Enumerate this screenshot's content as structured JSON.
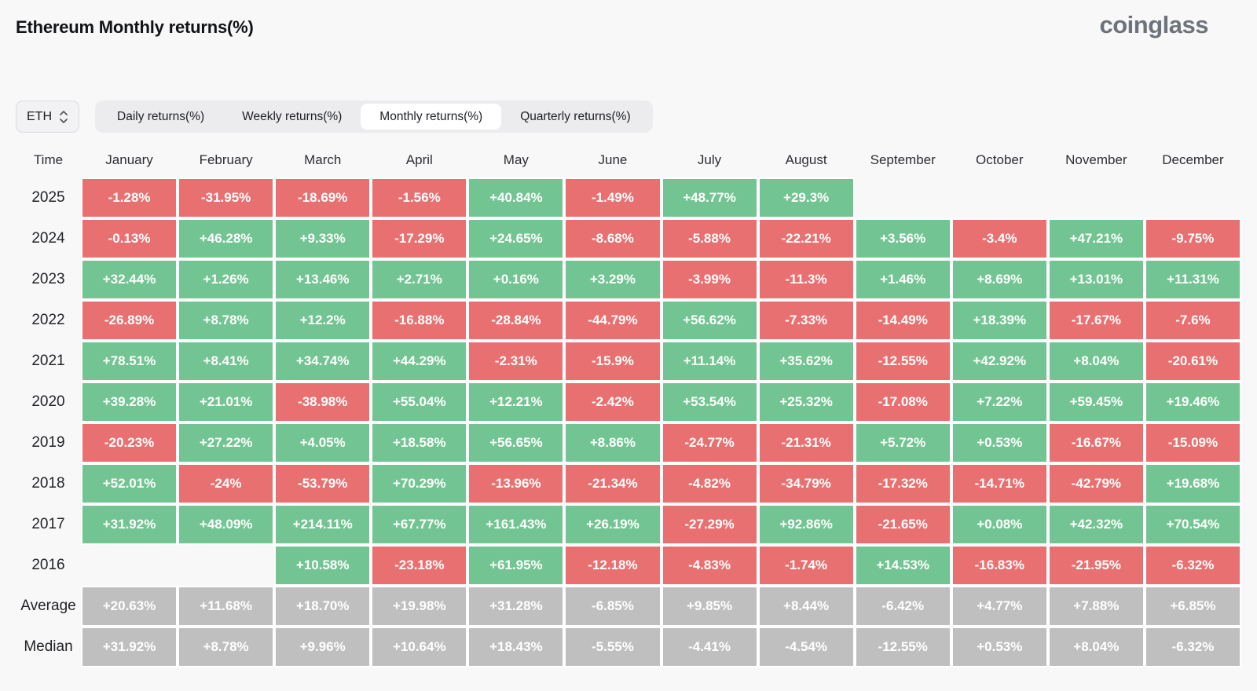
{
  "title": "Ethereum Monthly returns(%)",
  "logo": {
    "text": "coinglass"
  },
  "controls": {
    "symbol_select": {
      "value": "ETH"
    },
    "tabs": [
      {
        "label": "Daily returns(%)",
        "active": false
      },
      {
        "label": "Weekly returns(%)",
        "active": false
      },
      {
        "label": "Monthly returns(%)",
        "active": true
      },
      {
        "label": "Quarterly returns(%)",
        "active": false
      }
    ]
  },
  "colors": {
    "positive": "#72c592",
    "negative": "#e97070",
    "neutral": "#bfbfbf",
    "background": "#f8f8f9"
  },
  "chart_data": {
    "type": "heatmap",
    "title": "Ethereum Monthly returns(%)",
    "columns": [
      "Time",
      "January",
      "February",
      "March",
      "April",
      "May",
      "June",
      "July",
      "August",
      "September",
      "October",
      "November",
      "December"
    ],
    "rows": [
      {
        "label": "2025",
        "values": [
          "-1.28%",
          "-31.95%",
          "-18.69%",
          "-1.56%",
          "+40.84%",
          "-1.49%",
          "+48.77%",
          "+29.3%",
          null,
          null,
          null,
          null
        ]
      },
      {
        "label": "2024",
        "values": [
          "-0.13%",
          "+46.28%",
          "+9.33%",
          "-17.29%",
          "+24.65%",
          "-8.68%",
          "-5.88%",
          "-22.21%",
          "+3.56%",
          "-3.4%",
          "+47.21%",
          "-9.75%"
        ]
      },
      {
        "label": "2023",
        "values": [
          "+32.44%",
          "+1.26%",
          "+13.46%",
          "+2.71%",
          "+0.16%",
          "+3.29%",
          "-3.99%",
          "-11.3%",
          "+1.46%",
          "+8.69%",
          "+13.01%",
          "+11.31%"
        ]
      },
      {
        "label": "2022",
        "values": [
          "-26.89%",
          "+8.78%",
          "+12.2%",
          "-16.88%",
          "-28.84%",
          "-44.79%",
          "+56.62%",
          "-7.33%",
          "-14.49%",
          "+18.39%",
          "-17.67%",
          "-7.6%"
        ]
      },
      {
        "label": "2021",
        "values": [
          "+78.51%",
          "+8.41%",
          "+34.74%",
          "+44.29%",
          "-2.31%",
          "-15.9%",
          "+11.14%",
          "+35.62%",
          "-12.55%",
          "+42.92%",
          "+8.04%",
          "-20.61%"
        ]
      },
      {
        "label": "2020",
        "values": [
          "+39.28%",
          "+21.01%",
          "-38.98%",
          "+55.04%",
          "+12.21%",
          "-2.42%",
          "+53.54%",
          "+25.32%",
          "-17.08%",
          "+7.22%",
          "+59.45%",
          "+19.46%"
        ]
      },
      {
        "label": "2019",
        "values": [
          "-20.23%",
          "+27.22%",
          "+4.05%",
          "+18.58%",
          "+56.65%",
          "+8.86%",
          "-24.77%",
          "-21.31%",
          "+5.72%",
          "+0.53%",
          "-16.67%",
          "-15.09%"
        ]
      },
      {
        "label": "2018",
        "values": [
          "+52.01%",
          "-24%",
          "-53.79%",
          "+70.29%",
          "-13.96%",
          "-21.34%",
          "-4.82%",
          "-34.79%",
          "-17.32%",
          "-14.71%",
          "-42.79%",
          "+19.68%"
        ]
      },
      {
        "label": "2017",
        "values": [
          "+31.92%",
          "+48.09%",
          "+214.11%",
          "+67.77%",
          "+161.43%",
          "+26.19%",
          "-27.29%",
          "+92.86%",
          "-21.65%",
          "+0.08%",
          "+42.32%",
          "+70.54%"
        ]
      },
      {
        "label": "2016",
        "values": [
          null,
          null,
          "+10.58%",
          "-23.18%",
          "+61.95%",
          "-12.18%",
          "-4.83%",
          "-1.74%",
          "+14.53%",
          "-16.83%",
          "-21.95%",
          "-6.32%"
        ]
      },
      {
        "label": "Average",
        "style": "gray",
        "values": [
          "+20.63%",
          "+11.68%",
          "+18.70%",
          "+19.98%",
          "+31.28%",
          "-6.85%",
          "+9.85%",
          "+8.44%",
          "-6.42%",
          "+4.77%",
          "+7.88%",
          "+6.85%"
        ]
      },
      {
        "label": "Median",
        "style": "gray",
        "values": [
          "+31.92%",
          "+8.78%",
          "+9.96%",
          "+10.64%",
          "+18.43%",
          "-5.55%",
          "-4.41%",
          "-4.54%",
          "-12.55%",
          "+0.53%",
          "+8.04%",
          "-6.32%"
        ]
      }
    ]
  }
}
